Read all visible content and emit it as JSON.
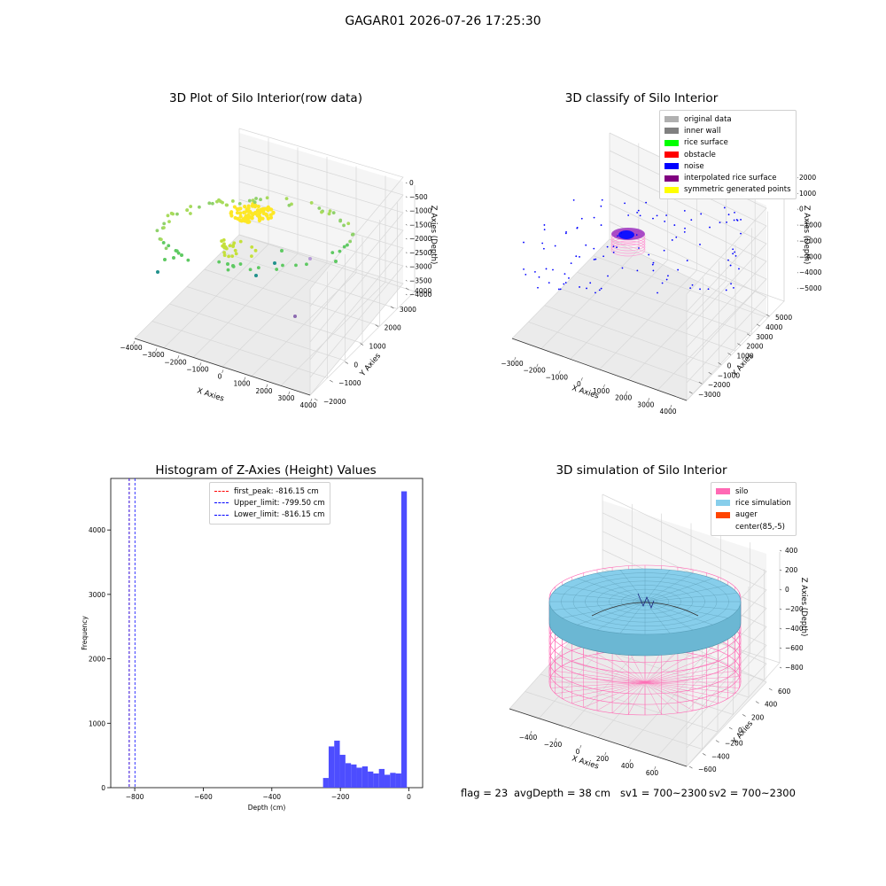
{
  "figure": {
    "title": "GAGAR01 2026-07-26 17:25:30",
    "status": {
      "flag": "flag = 23",
      "avg_depth": "avgDepth = 38 cm",
      "sv1": "sv1 = 700~2300",
      "sv2": "sv2 = 700~2300"
    }
  },
  "colors": {
    "pane": "#f2f2f2",
    "grid": "#d7d7d7",
    "histogram_bar": "#4d4dff",
    "first_peak_line": "#ff0000",
    "limit_lines": "#0000ff",
    "silo": "#ff69b4",
    "rice_simulation": "#87ceeb",
    "auger": "#ff4500",
    "scatter_colormap": [
      "#440154",
      "#3b528b",
      "#21918c",
      "#5ec962",
      "#fde725"
    ]
  },
  "chart_data": [
    {
      "type": "scatter",
      "projection": "3d",
      "title": "3D Plot of Silo Interior(row data)",
      "xlabel": "X Axies",
      "ylabel": "Y Axies",
      "zlabel": "Z Axies (Depth)",
      "xlim": [
        -4000,
        4000
      ],
      "ylim": [
        -2500,
        4500
      ],
      "zlim": [
        -4200,
        200
      ],
      "xticks": [
        "−4000",
        "−3000",
        "−2000",
        "−1000",
        "0",
        "1000",
        "2000",
        "3000",
        "4000"
      ],
      "yticks": [
        "−2000",
        "−1000",
        "0",
        "1000",
        "2000",
        "3000",
        "4000"
      ],
      "zticks": [
        "0",
        "−500",
        "−1000",
        "−1500",
        "−2000",
        "−2500",
        "−3000",
        "−3500",
        "−4000"
      ],
      "grid": true,
      "colormap": "viridis"
    },
    {
      "type": "scatter",
      "projection": "3d",
      "title": "3D classify of Silo Interior",
      "xlabel": "X Axies",
      "ylabel": "Y Axies",
      "zlabel": "Z Axies (Depth)",
      "xlim": [
        -3500,
        4500
      ],
      "ylim": [
        -3500,
        5500
      ],
      "zlim": [
        -5500,
        2500
      ],
      "xticks": [
        "−3000",
        "−2000",
        "−1000",
        "0",
        "1000",
        "2000",
        "3000",
        "4000"
      ],
      "yticks": [
        "−3000",
        "−2000",
        "−1000",
        "0",
        "1000",
        "2000",
        "3000",
        "4000",
        "5000"
      ],
      "zticks": [
        "2000",
        "1000",
        "0",
        "−1000",
        "−2000",
        "−3000",
        "−4000",
        "−5000"
      ],
      "grid": true,
      "legend_position": "top-right",
      "legend": [
        {
          "label": "original data",
          "color": "#b0b0b0"
        },
        {
          "label": "inner wall",
          "color": "#808080"
        },
        {
          "label": "rice surface",
          "color": "#00ff00"
        },
        {
          "label": "obstacle",
          "color": "#ff0000"
        },
        {
          "label": "noise",
          "color": "#0000ff"
        },
        {
          "label": "interpolated rice surface",
          "color": "#800080"
        },
        {
          "label": "symmetric generated points",
          "color": "#ffff00"
        }
      ]
    },
    {
      "type": "bar",
      "title": "Histogram of Z-Axies (Height) Values",
      "xlabel": "Depth (cm)",
      "ylabel": "Frequency",
      "xlim": [
        -870,
        40
      ],
      "ylim": [
        0,
        4800
      ],
      "xticks": [
        -800,
        -600,
        -400,
        -200,
        0
      ],
      "xtick_labels": [
        "−800",
        "−600",
        "−400",
        "−200",
        "0"
      ],
      "yticks": [
        0,
        1000,
        2000,
        3000,
        4000
      ],
      "bin_width": 16.3,
      "bins": [
        {
          "x0": -250.5,
          "count": 150
        },
        {
          "x0": -234.2,
          "count": 640
        },
        {
          "x0": -217.9,
          "count": 730
        },
        {
          "x0": -201.6,
          "count": 510
        },
        {
          "x0": -185.3,
          "count": 380
        },
        {
          "x0": -169.0,
          "count": 360
        },
        {
          "x0": -152.7,
          "count": 310
        },
        {
          "x0": -136.4,
          "count": 330
        },
        {
          "x0": -120.1,
          "count": 250
        },
        {
          "x0": -103.8,
          "count": 220
        },
        {
          "x0": -87.5,
          "count": 290
        },
        {
          "x0": -71.2,
          "count": 200
        },
        {
          "x0": -54.9,
          "count": 230
        },
        {
          "x0": -38.6,
          "count": 220
        },
        {
          "x0": -22.3,
          "count": 4600
        }
      ],
      "vlines": [
        {
          "label": "first_peak: -816.15 cm",
          "x": -816.15,
          "color": "#ff0000"
        },
        {
          "label": "Upper_limit: -799.50 cm",
          "x": -799.5,
          "color": "#0000ff"
        },
        {
          "label": "Lower_limit: -816.15 cm",
          "x": -816.15,
          "color": "#0000ff"
        }
      ],
      "legend_position": "top-center"
    },
    {
      "type": "surface",
      "projection": "3d",
      "title": "3D simulation of Silo Interior",
      "xlabel": "X Axies",
      "ylabel": "Y Axies",
      "zlabel": "Z Axies (Depth)",
      "xlim": [
        -550,
        750
      ],
      "ylim": [
        -750,
        650
      ],
      "zlim": [
        -900,
        450
      ],
      "xticks": [
        "−400",
        "−200",
        "0",
        "200",
        "400",
        "600"
      ],
      "yticks": [
        "−600",
        "−400",
        "−200",
        "0",
        "200",
        "400",
        "600"
      ],
      "zticks": [
        "400",
        "200",
        "0",
        "−200",
        "−400",
        "−600",
        "−800"
      ],
      "grid": true,
      "legend_position": "top-right",
      "legend": [
        {
          "label": "silo",
          "color": "#ff69b4"
        },
        {
          "label": "rice simulation",
          "color": "#87ceeb"
        },
        {
          "label": "auger",
          "color": "#ff4500"
        },
        {
          "label": "center(85,-5)",
          "color": "none"
        }
      ]
    }
  ]
}
